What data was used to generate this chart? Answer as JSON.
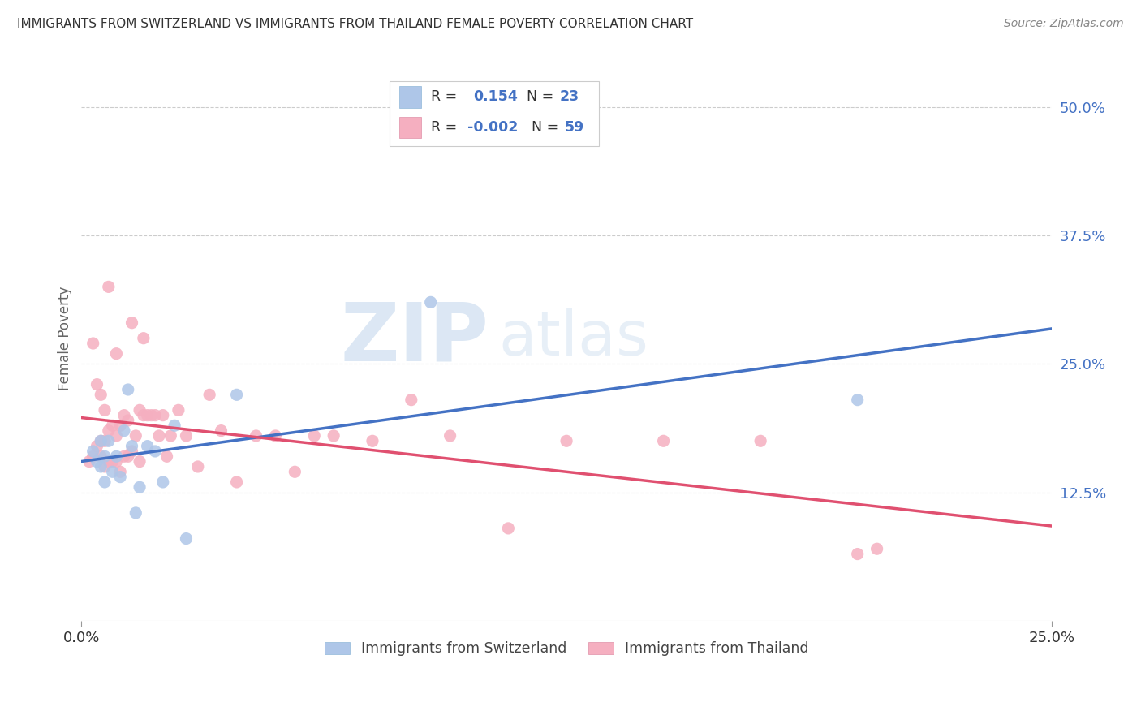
{
  "title": "IMMIGRANTS FROM SWITZERLAND VS IMMIGRANTS FROM THAILAND FEMALE POVERTY CORRELATION CHART",
  "source": "Source: ZipAtlas.com",
  "ylabel": "Female Poverty",
  "legend_labels": [
    "Immigrants from Switzerland",
    "Immigrants from Thailand"
  ],
  "r_swiss": 0.154,
  "n_swiss": 23,
  "r_thai": -0.002,
  "n_thai": 59,
  "yticks": [
    0.0,
    0.125,
    0.25,
    0.375,
    0.5
  ],
  "ytick_labels": [
    "",
    "12.5%",
    "25.0%",
    "37.5%",
    "50.0%"
  ],
  "xlim": [
    0.0,
    0.25
  ],
  "ylim": [
    0.0,
    0.55
  ],
  "color_swiss": "#aec6e8",
  "color_thai": "#f5afc0",
  "line_color_swiss": "#4472c4",
  "line_color_thai": "#e05070",
  "background_color": "#ffffff",
  "swiss_x": [
    0.003,
    0.004,
    0.005,
    0.005,
    0.006,
    0.006,
    0.007,
    0.008,
    0.009,
    0.01,
    0.011,
    0.012,
    0.013,
    0.014,
    0.015,
    0.017,
    0.019,
    0.021,
    0.024,
    0.027,
    0.04,
    0.09,
    0.2
  ],
  "swiss_y": [
    0.165,
    0.155,
    0.175,
    0.15,
    0.16,
    0.135,
    0.175,
    0.145,
    0.16,
    0.14,
    0.185,
    0.225,
    0.17,
    0.105,
    0.13,
    0.17,
    0.165,
    0.135,
    0.19,
    0.08,
    0.22,
    0.31,
    0.215
  ],
  "thai_x": [
    0.002,
    0.003,
    0.003,
    0.004,
    0.004,
    0.005,
    0.005,
    0.005,
    0.006,
    0.006,
    0.006,
    0.007,
    0.007,
    0.007,
    0.008,
    0.008,
    0.009,
    0.009,
    0.009,
    0.01,
    0.01,
    0.011,
    0.011,
    0.012,
    0.012,
    0.013,
    0.013,
    0.014,
    0.015,
    0.015,
    0.016,
    0.016,
    0.017,
    0.018,
    0.019,
    0.02,
    0.021,
    0.022,
    0.023,
    0.025,
    0.027,
    0.03,
    0.033,
    0.036,
    0.04,
    0.045,
    0.05,
    0.055,
    0.06,
    0.065,
    0.075,
    0.085,
    0.095,
    0.11,
    0.125,
    0.15,
    0.175,
    0.2,
    0.205
  ],
  "thai_y": [
    0.155,
    0.16,
    0.27,
    0.17,
    0.23,
    0.16,
    0.175,
    0.22,
    0.15,
    0.175,
    0.205,
    0.155,
    0.185,
    0.325,
    0.155,
    0.19,
    0.155,
    0.18,
    0.26,
    0.145,
    0.19,
    0.16,
    0.2,
    0.16,
    0.195,
    0.165,
    0.29,
    0.18,
    0.155,
    0.205,
    0.2,
    0.275,
    0.2,
    0.2,
    0.2,
    0.18,
    0.2,
    0.16,
    0.18,
    0.205,
    0.18,
    0.15,
    0.22,
    0.185,
    0.135,
    0.18,
    0.18,
    0.145,
    0.18,
    0.18,
    0.175,
    0.215,
    0.18,
    0.09,
    0.175,
    0.175,
    0.175,
    0.065,
    0.07
  ],
  "watermark_zip": "ZIP",
  "watermark_atlas": "atlas"
}
